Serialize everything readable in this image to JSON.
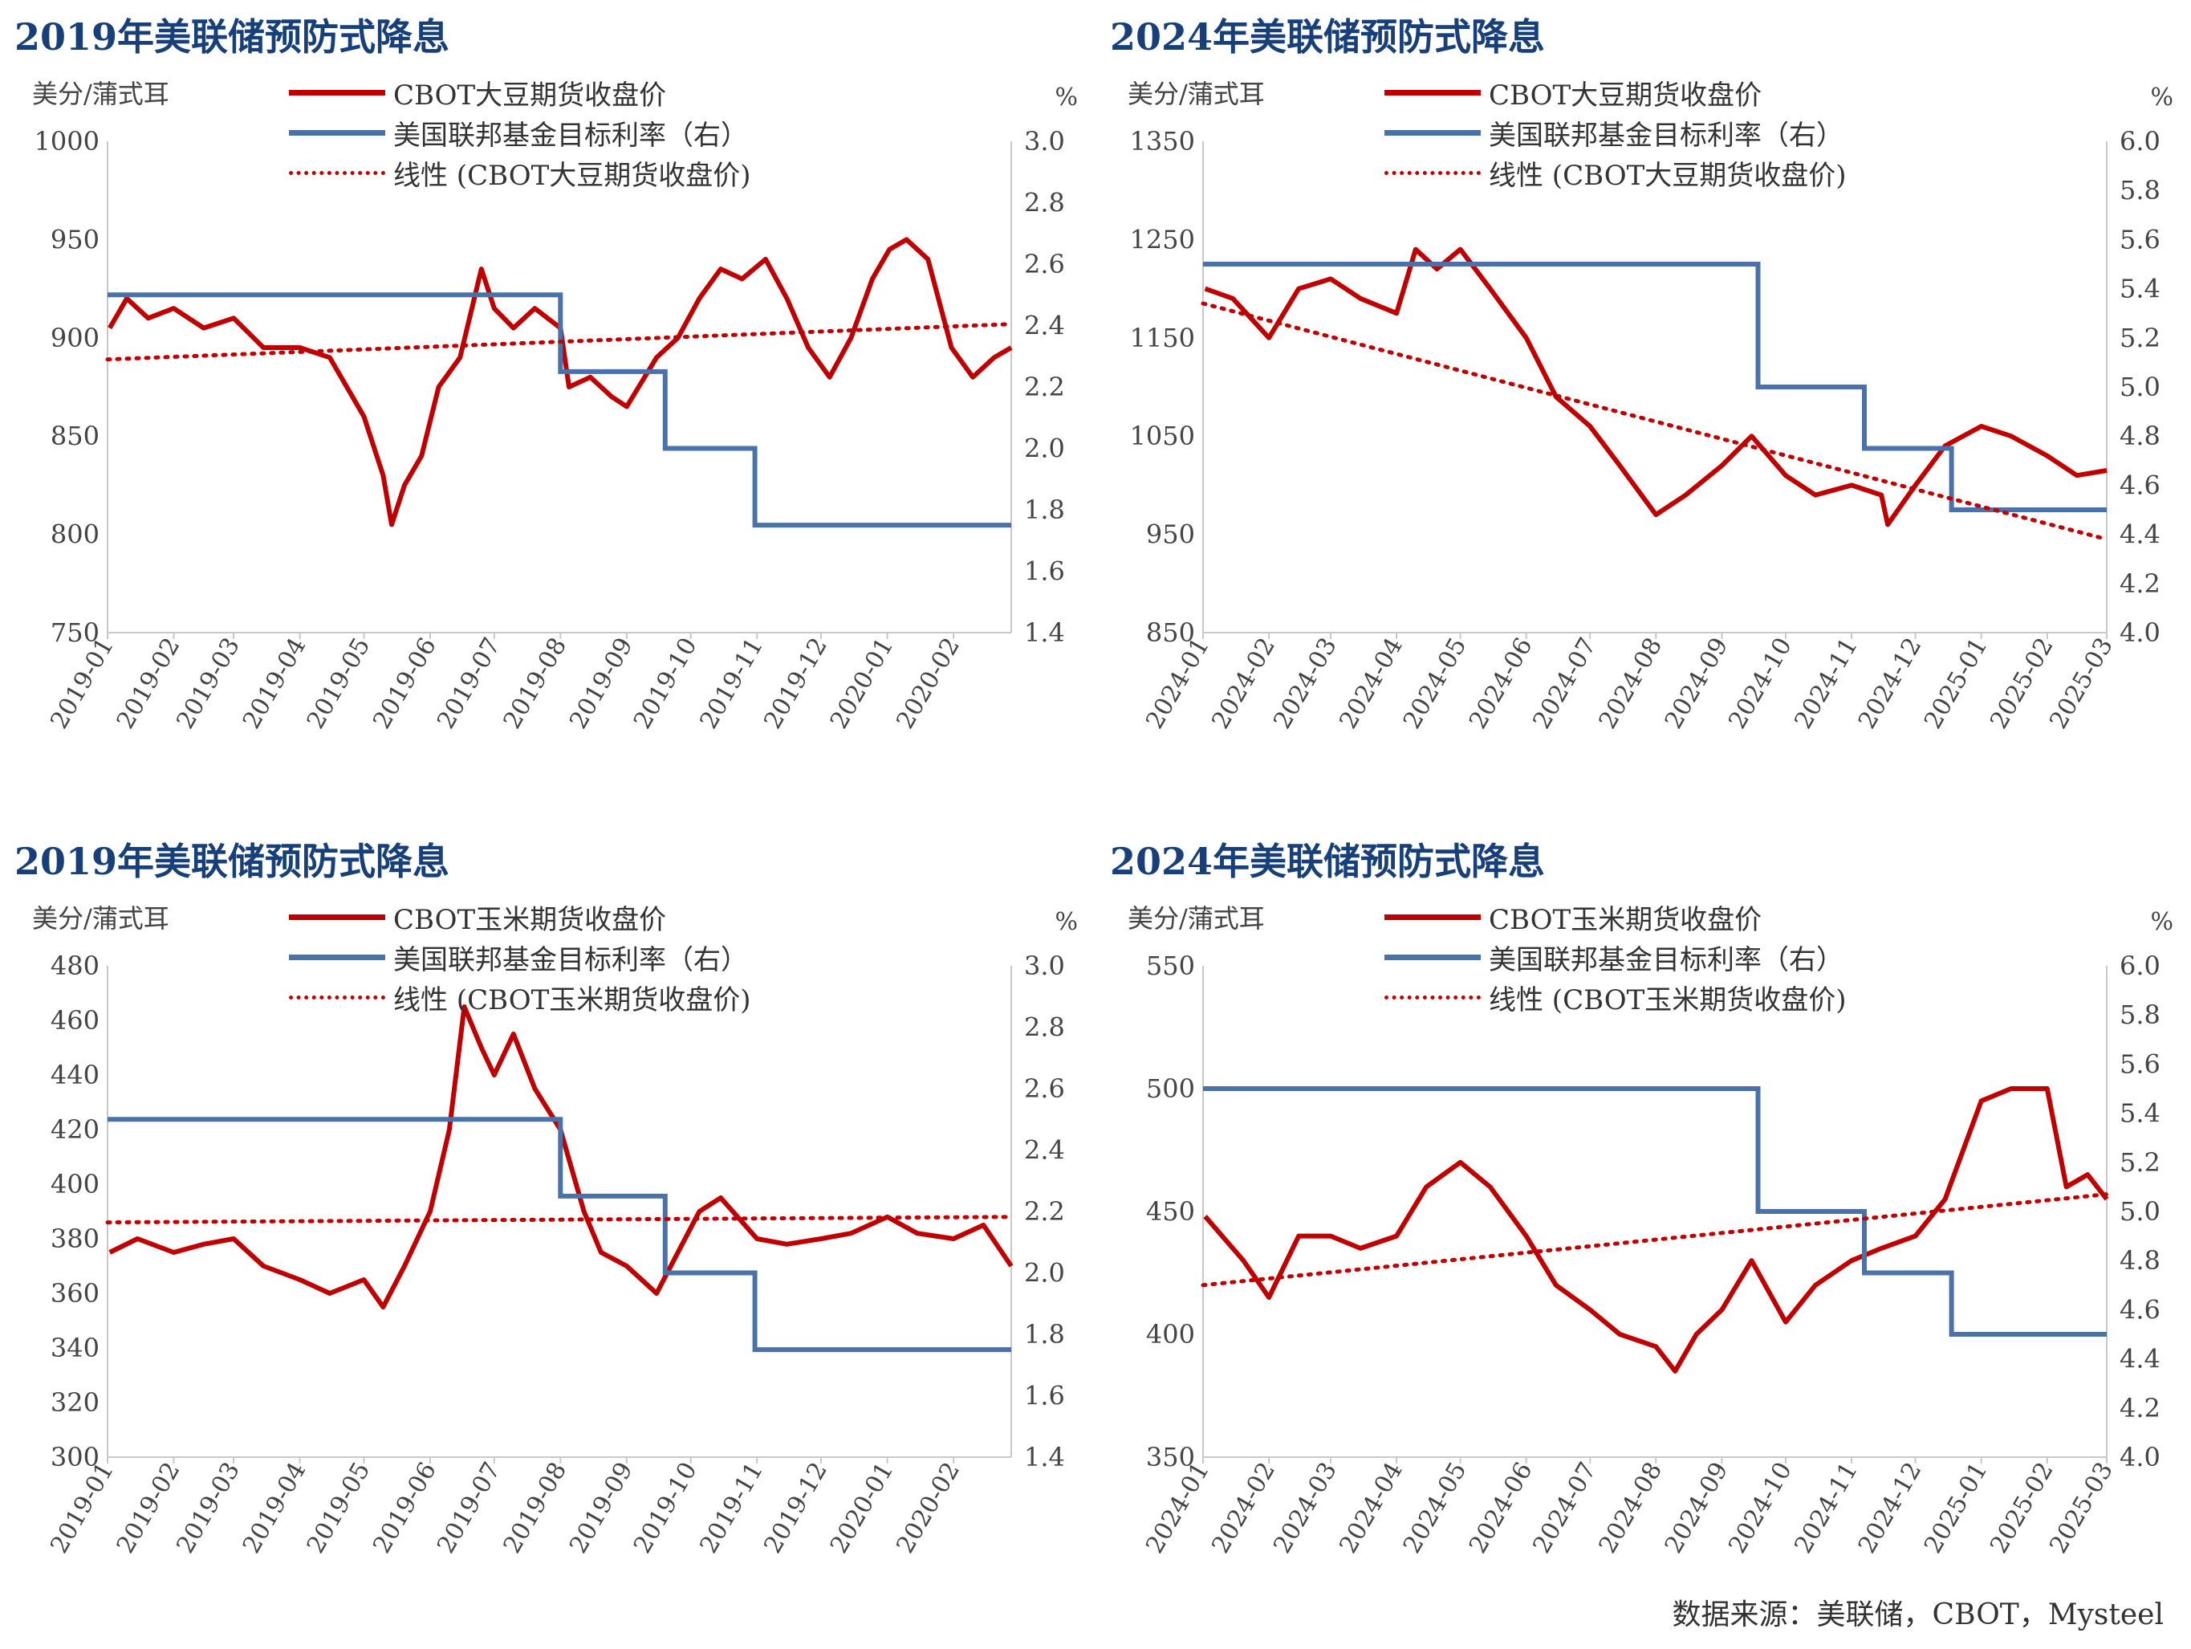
{
  "source": "数据来源：美联储，CBOT，Mysteel",
  "colors": {
    "price": "#c00000",
    "rate": "#4a72a8",
    "trend": "#c00000",
    "title": "#17407a"
  },
  "chart_data": [
    {
      "type": "line",
      "title": "2019年美联储预防式降息",
      "ylabel_left": "美分/蒲式耳",
      "ylabel_right": "%",
      "ylim_left": [
        750,
        1000
      ],
      "yticks_left": [
        750,
        800,
        850,
        900,
        950,
        1000
      ],
      "ylim_right": [
        1.4,
        3.0
      ],
      "yticks_right": [
        "1.4",
        "1.6",
        "1.8",
        "2.0",
        "2.2",
        "2.4",
        "2.6",
        "2.8",
        "3.0"
      ],
      "xlim": [
        "2019-01",
        "2020-02-28"
      ],
      "x_tick_labels": [
        "2019-01",
        "2019-02",
        "2019-03",
        "2019-04",
        "2019-05",
        "2019-06",
        "2019-07",
        "2019-08",
        "2019-09",
        "2019-10",
        "2019-11",
        "2019-12",
        "2020-01",
        "2020-02"
      ],
      "legend": [
        "CBOT大豆期货收盘价",
        "美国联邦基金目标利率（右）",
        "线性 (CBOT大豆期货收盘价)"
      ],
      "series": [
        {
          "name": "CBOT大豆期货收盘价",
          "axis": "left",
          "x": [
            "2019-01-02",
            "2019-01-10",
            "2019-01-20",
            "2019-02-01",
            "2019-02-15",
            "2019-03-01",
            "2019-03-15",
            "2019-04-01",
            "2019-04-15",
            "2019-05-01",
            "2019-05-10",
            "2019-05-14",
            "2019-05-20",
            "2019-05-28",
            "2019-06-05",
            "2019-06-15",
            "2019-06-25",
            "2019-07-01",
            "2019-07-10",
            "2019-07-20",
            "2019-08-01",
            "2019-08-05",
            "2019-08-15",
            "2019-08-25",
            "2019-09-01",
            "2019-09-15",
            "2019-09-25",
            "2019-10-05",
            "2019-10-15",
            "2019-10-25",
            "2019-11-05",
            "2019-11-15",
            "2019-11-25",
            "2019-12-05",
            "2019-12-15",
            "2019-12-25",
            "2020-01-02",
            "2020-01-10",
            "2020-01-20",
            "2020-01-31",
            "2020-02-10",
            "2020-02-20",
            "2020-02-28"
          ],
          "values": [
            905,
            920,
            910,
            915,
            905,
            910,
            895,
            895,
            890,
            860,
            830,
            805,
            825,
            840,
            875,
            890,
            935,
            915,
            905,
            915,
            905,
            875,
            880,
            870,
            865,
            890,
            900,
            920,
            935,
            930,
            940,
            920,
            895,
            880,
            900,
            930,
            945,
            950,
            940,
            895,
            880,
            890,
            895
          ]
        },
        {
          "name": "美国联邦基金目标利率（右）",
          "axis": "right",
          "step": true,
          "x": [
            "2019-01-01",
            "2019-08-01",
            "2019-09-19",
            "2019-10-31",
            "2020-02-28"
          ],
          "values": [
            2.5,
            2.25,
            2.0,
            1.75,
            1.75
          ]
        },
        {
          "name": "线性 (CBOT大豆期货收盘价)",
          "axis": "left",
          "trend": true,
          "x": [
            "2019-01-01",
            "2020-02-28"
          ],
          "values": [
            889,
            907
          ]
        }
      ]
    },
    {
      "type": "line",
      "title": "2024年美联储预防式降息",
      "ylabel_left": "美分/蒲式耳",
      "ylabel_right": "%",
      "ylim_left": [
        850,
        1350
      ],
      "yticks_left": [
        850,
        950,
        1050,
        1150,
        1250,
        1350
      ],
      "ylim_right": [
        4.0,
        6.0
      ],
      "yticks_right": [
        "4.0",
        "4.2",
        "4.4",
        "4.6",
        "4.8",
        "5.0",
        "5.2",
        "5.4",
        "5.6",
        "5.8",
        "6.0"
      ],
      "xlim": [
        "2024-01",
        "2025-03"
      ],
      "x_tick_labels": [
        "2024-01",
        "2024-02",
        "2024-03",
        "2024-04",
        "2024-05",
        "2024-06",
        "2024-07",
        "2024-08",
        "2024-09",
        "2024-10",
        "2024-11",
        "2024-12",
        "2025-01",
        "2025-02",
        "2025-03"
      ],
      "legend": [
        "CBOT大豆期货收盘价",
        "美国联邦基金目标利率（右）",
        "线性 (CBOT大豆期货收盘价)"
      ],
      "series": [
        {
          "name": "CBOT大豆期货收盘价",
          "axis": "left",
          "x": [
            "2024-01-02",
            "2024-01-15",
            "2024-02-01",
            "2024-02-15",
            "2024-03-01",
            "2024-03-15",
            "2024-04-01",
            "2024-04-10",
            "2024-04-20",
            "2024-05-01",
            "2024-05-15",
            "2024-06-01",
            "2024-06-15",
            "2024-07-01",
            "2024-07-15",
            "2024-08-01",
            "2024-08-15",
            "2024-09-01",
            "2024-09-15",
            "2024-10-01",
            "2024-10-15",
            "2024-11-01",
            "2024-11-15",
            "2024-11-18",
            "2024-12-01",
            "2024-12-15",
            "2025-01-01",
            "2025-01-15",
            "2025-02-01",
            "2025-02-15",
            "2025-03-01"
          ],
          "values": [
            1200,
            1190,
            1150,
            1200,
            1210,
            1190,
            1175,
            1240,
            1220,
            1240,
            1200,
            1150,
            1090,
            1060,
            1020,
            970,
            990,
            1020,
            1050,
            1010,
            990,
            1000,
            990,
            960,
            1000,
            1040,
            1060,
            1050,
            1030,
            1010,
            1015
          ]
        },
        {
          "name": "美国联邦基金目标利率（右）",
          "axis": "right",
          "step": true,
          "x": [
            "2024-01-01",
            "2024-09-18",
            "2024-11-07",
            "2024-12-18",
            "2025-03-01"
          ],
          "values": [
            5.5,
            5.0,
            4.75,
            4.5,
            4.5
          ]
        },
        {
          "name": "线性 (CBOT大豆期货收盘价)",
          "axis": "left",
          "trend": true,
          "x": [
            "2024-01-01",
            "2025-03-01"
          ],
          "values": [
            1185,
            945
          ]
        }
      ]
    },
    {
      "type": "line",
      "title": "2019年美联储预防式降息",
      "ylabel_left": "美分/蒲式耳",
      "ylabel_right": "%",
      "ylim_left": [
        300,
        480
      ],
      "yticks_left": [
        300,
        320,
        340,
        360,
        380,
        400,
        420,
        440,
        460,
        480
      ],
      "ylim_right": [
        1.4,
        3.0
      ],
      "yticks_right": [
        "1.4",
        "1.6",
        "1.8",
        "2.0",
        "2.2",
        "2.4",
        "2.6",
        "2.8",
        "3.0"
      ],
      "xlim": [
        "2019-01",
        "2020-02-28"
      ],
      "x_tick_labels": [
        "2019-01",
        "2019-02",
        "2019-03",
        "2019-04",
        "2019-05",
        "2019-06",
        "2019-07",
        "2019-08",
        "2019-09",
        "2019-10",
        "2019-11",
        "2019-12",
        "2020-01",
        "2020-02"
      ],
      "legend": [
        "CBOT玉米期货收盘价",
        "美国联邦基金目标利率（右）",
        "线性 (CBOT玉米期货收盘价)"
      ],
      "series": [
        {
          "name": "CBOT玉米期货收盘价",
          "axis": "left",
          "x": [
            "2019-01-02",
            "2019-01-15",
            "2019-02-01",
            "2019-02-15",
            "2019-03-01",
            "2019-03-15",
            "2019-04-01",
            "2019-04-15",
            "2019-05-01",
            "2019-05-10",
            "2019-05-20",
            "2019-06-01",
            "2019-06-10",
            "2019-06-17",
            "2019-06-25",
            "2019-07-01",
            "2019-07-10",
            "2019-07-20",
            "2019-08-01",
            "2019-08-12",
            "2019-08-20",
            "2019-09-01",
            "2019-09-15",
            "2019-09-25",
            "2019-10-05",
            "2019-10-15",
            "2019-11-01",
            "2019-11-15",
            "2019-12-01",
            "2019-12-15",
            "2020-01-01",
            "2020-01-15",
            "2020-02-01",
            "2020-02-15",
            "2020-02-28"
          ],
          "values": [
            375,
            380,
            375,
            378,
            380,
            370,
            365,
            360,
            365,
            355,
            370,
            390,
            420,
            465,
            450,
            440,
            455,
            435,
            420,
            390,
            375,
            370,
            360,
            375,
            390,
            395,
            380,
            378,
            380,
            382,
            388,
            382,
            380,
            385,
            370
          ]
        },
        {
          "name": "美国联邦基金目标利率（右）",
          "axis": "right",
          "step": true,
          "x": [
            "2019-01-01",
            "2019-08-01",
            "2019-09-19",
            "2019-10-31",
            "2020-02-28"
          ],
          "values": [
            2.5,
            2.25,
            2.0,
            1.75,
            1.75
          ]
        },
        {
          "name": "线性 (CBOT玉米期货收盘价)",
          "axis": "left",
          "trend": true,
          "x": [
            "2019-01-01",
            "2020-02-28"
          ],
          "values": [
            386,
            388
          ]
        }
      ]
    },
    {
      "type": "line",
      "title": "2024年美联储预防式降息",
      "ylabel_left": "美分/蒲式耳",
      "ylabel_right": "%",
      "ylim_left": [
        350,
        550
      ],
      "yticks_left": [
        350,
        400,
        450,
        500,
        550
      ],
      "ylim_right": [
        4.0,
        6.0
      ],
      "yticks_right": [
        "4.0",
        "4.2",
        "4.4",
        "4.6",
        "4.8",
        "5.0",
        "5.2",
        "5.4",
        "5.6",
        "5.8",
        "6.0"
      ],
      "xlim": [
        "2024-01",
        "2025-03"
      ],
      "x_tick_labels": [
        "2024-01",
        "2024-02",
        "2024-03",
        "2024-04",
        "2024-05",
        "2024-06",
        "2024-07",
        "2024-08",
        "2024-09",
        "2024-10",
        "2024-11",
        "2024-12",
        "2025-01",
        "2025-02",
        "2025-03"
      ],
      "legend": [
        "CBOT玉米期货收盘价",
        "美国联邦基金目标利率（右）",
        "线性 (CBOT玉米期货收盘价)"
      ],
      "series": [
        {
          "name": "CBOT玉米期货收盘价",
          "axis": "left",
          "x": [
            "2024-01-02",
            "2024-01-20",
            "2024-02-01",
            "2024-02-15",
            "2024-03-01",
            "2024-03-15",
            "2024-04-01",
            "2024-04-15",
            "2024-05-01",
            "2024-05-15",
            "2024-06-01",
            "2024-06-15",
            "2024-07-01",
            "2024-07-15",
            "2024-08-01",
            "2024-08-10",
            "2024-08-20",
            "2024-09-01",
            "2024-09-15",
            "2024-10-01",
            "2024-10-15",
            "2024-11-01",
            "2024-11-15",
            "2024-12-01",
            "2024-12-15",
            "2025-01-01",
            "2025-01-15",
            "2025-02-01",
            "2025-02-10",
            "2025-02-20",
            "2025-03-01"
          ],
          "values": [
            448,
            430,
            415,
            440,
            440,
            435,
            440,
            460,
            470,
            460,
            440,
            420,
            410,
            400,
            395,
            385,
            400,
            410,
            430,
            405,
            420,
            430,
            435,
            440,
            455,
            495,
            500,
            500,
            460,
            465,
            455
          ]
        },
        {
          "name": "美国联邦基金目标利率（右）",
          "axis": "right",
          "step": true,
          "x": [
            "2024-01-01",
            "2024-09-18",
            "2024-11-07",
            "2024-12-18",
            "2025-03-01"
          ],
          "values": [
            5.5,
            5.0,
            4.75,
            4.5,
            4.5
          ]
        },
        {
          "name": "线性 (CBOT玉米期货收盘价)",
          "axis": "left",
          "trend": true,
          "x": [
            "2024-01-01",
            "2025-03-01"
          ],
          "values": [
            420,
            457
          ]
        }
      ]
    }
  ]
}
